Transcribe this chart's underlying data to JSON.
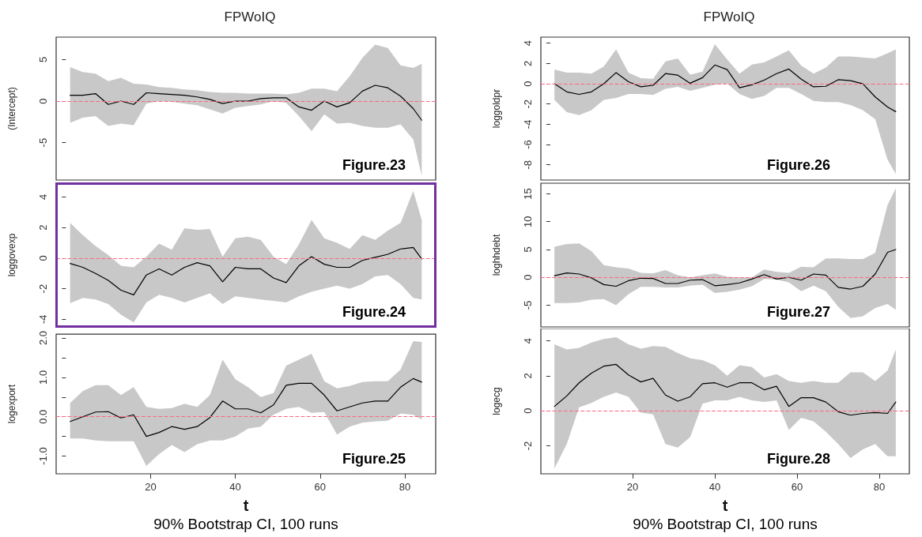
{
  "chart_data": [
    {
      "type": "line",
      "title": "FPWoIQ",
      "ylabel": "(Intercept)",
      "marker": "none",
      "tick_labels": "y",
      "x": [
        1,
        4,
        7,
        10,
        13,
        16,
        19,
        22,
        25,
        28,
        31,
        34,
        37,
        40,
        43,
        46,
        49,
        52,
        55,
        58,
        61,
        64,
        67,
        70,
        73,
        76,
        79,
        82,
        84
      ],
      "xlim": [
        -2.3,
        87.3
      ],
      "xticks": [
        20,
        40,
        60,
        80
      ],
      "ylim": [
        -9.5,
        7.7
      ],
      "yticks": [
        -5,
        0,
        5
      ],
      "ref_lines": [
        {
          "axis": "y",
          "value": 0,
          "color": "#ff6680",
          "line_style": "dashed"
        }
      ],
      "annotations": [
        "Figure.23"
      ],
      "series": [
        {
          "color": "#000000",
          "values": [
            0.7,
            0.7,
            0.9,
            -0.4,
            0,
            -0.4,
            1.0,
            0.9,
            0.8,
            0.7,
            0.5,
            0.2,
            -0.3,
            0,
            0,
            0.3,
            0.4,
            0.4,
            -0.7,
            -1.1,
            0,
            -0.7,
            -0.2,
            1.2,
            1.9,
            1.6,
            0.6,
            -0.9,
            -2.3
          ],
          "upper": [
            4.1,
            3.5,
            3.3,
            2.4,
            2.8,
            2.1,
            2.0,
            1.7,
            1.6,
            1.4,
            1.3,
            1.1,
            1.0,
            1.0,
            0.9,
            0.9,
            0.9,
            0.8,
            1.0,
            1.5,
            1.5,
            1.2,
            3.0,
            5.2,
            6.8,
            6.4,
            4.3,
            4.0,
            4.5
          ],
          "lower": [
            -2.6,
            -2.0,
            -1.8,
            -3.0,
            -2.7,
            -2.9,
            -0.3,
            0.0,
            -0.1,
            -0.3,
            -0.5,
            -1.0,
            -1.5,
            -0.8,
            -0.6,
            -0.4,
            0.0,
            -0.2,
            -1.8,
            -3.6,
            -1.6,
            -2.7,
            -2.6,
            -3.0,
            -3.2,
            -3.2,
            -2.8,
            -4.6,
            -9.0
          ]
        }
      ]
    },
    {
      "type": "line",
      "title": "FPWoIQ",
      "ylabel": "loggoldpr",
      "marker": "none",
      "tick_labels": "y",
      "x": [
        1,
        4,
        7,
        10,
        13,
        16,
        19,
        22,
        25,
        28,
        31,
        34,
        37,
        40,
        43,
        46,
        49,
        52,
        55,
        58,
        61,
        64,
        67,
        70,
        73,
        76,
        79,
        82,
        84
      ],
      "xlim": [
        -2.3,
        87.3
      ],
      "xticks": [
        20,
        40,
        60,
        80
      ],
      "ylim": [
        -9.5,
        4.6
      ],
      "yticks": [
        -8,
        -6,
        -4,
        -2,
        0,
        2,
        4
      ],
      "ref_lines": [
        {
          "axis": "y",
          "value": 0,
          "color": "#ff6680",
          "line_style": "dashed"
        }
      ],
      "annotations": [
        "Figure.26"
      ],
      "series": [
        {
          "color": "#000000",
          "values": [
            0,
            -0.8,
            -1.05,
            -0.8,
            0,
            1.1,
            0.2,
            -0.3,
            -0.15,
            1.0,
            0.85,
            0.05,
            0.6,
            1.85,
            1.4,
            -0.4,
            -0.1,
            0.35,
            1.0,
            1.45,
            0.45,
            -0.3,
            -0.25,
            0.4,
            0.3,
            0,
            -1.3,
            -2.3,
            -2.75
          ],
          "upper": [
            1.4,
            1.1,
            1.1,
            1.0,
            1.7,
            3.4,
            1.1,
            0.55,
            0.5,
            2.2,
            2.5,
            0.9,
            1.2,
            3.9,
            2.4,
            1.0,
            1.9,
            2.1,
            2.7,
            3.3,
            1.8,
            1.0,
            1.6,
            2.7,
            2.7,
            2.6,
            2.5,
            3.0,
            3.4
          ],
          "lower": [
            -1.6,
            -2.8,
            -3.1,
            -2.6,
            -1.6,
            -1.4,
            -1.0,
            -1.0,
            -1.1,
            -0.5,
            -0.3,
            -0.7,
            -0.4,
            -0.1,
            0,
            -1.0,
            -1.5,
            -1.2,
            -0.4,
            -0.4,
            -1.0,
            -1.7,
            -1.8,
            -1.8,
            -2.1,
            -2.6,
            -3.5,
            -7.5,
            -8.9
          ]
        }
      ]
    },
    {
      "type": "line",
      "ylabel": "loggovexp",
      "marker": "none",
      "tick_labels": "y",
      "x": [
        1,
        4,
        7,
        10,
        13,
        16,
        19,
        22,
        25,
        28,
        31,
        34,
        37,
        40,
        43,
        46,
        49,
        52,
        55,
        58,
        61,
        64,
        67,
        70,
        73,
        76,
        79,
        82,
        84
      ],
      "xlim": [
        -2.3,
        87.3
      ],
      "xticks": [
        20,
        40,
        60,
        80
      ],
      "ylim": [
        -4.5,
        4.9
      ],
      "yticks": [
        -4,
        -2,
        0,
        2,
        4
      ],
      "ref_lines": [
        {
          "axis": "y",
          "value": 0,
          "color": "#ff6680",
          "line_style": "dashed"
        }
      ],
      "annotations": [
        "Figure.24"
      ],
      "series": [
        {
          "color": "#000000",
          "values": [
            -0.35,
            -0.6,
            -1.0,
            -1.45,
            -2.1,
            -2.4,
            -1.1,
            -0.7,
            -1.1,
            -0.6,
            -0.3,
            -0.5,
            -1.55,
            -0.6,
            -0.7,
            -0.7,
            -1.3,
            -1.6,
            -0.5,
            0.1,
            -0.4,
            -0.6,
            -0.6,
            -0.15,
            0.05,
            0.25,
            0.6,
            0.7,
            -0.05
          ],
          "upper": [
            2.3,
            1.5,
            0.8,
            0.2,
            -0.5,
            -0.6,
            0.1,
            0.95,
            0.55,
            1.95,
            1.85,
            1.9,
            0.1,
            1.3,
            1.4,
            1.2,
            0.1,
            -0.4,
            0.9,
            2.5,
            1.3,
            1.0,
            0.6,
            1.5,
            1.2,
            1.8,
            2.3,
            4.4,
            2.5
          ],
          "lower": [
            -2.95,
            -2.6,
            -2.7,
            -3.0,
            -3.7,
            -4.2,
            -2.9,
            -2.4,
            -2.6,
            -2.9,
            -2.6,
            -2.3,
            -3.0,
            -2.5,
            -2.6,
            -2.7,
            -2.8,
            -2.9,
            -2.5,
            -2.2,
            -2.0,
            -1.8,
            -2.0,
            -1.7,
            -1.2,
            -1.1,
            -1.7,
            -2.6,
            -2.7
          ]
        }
      ]
    },
    {
      "type": "line",
      "ylabel": "loghhdebt",
      "marker": "none",
      "tick_labels": "y",
      "x": [
        1,
        4,
        7,
        10,
        13,
        16,
        19,
        22,
        25,
        28,
        31,
        34,
        37,
        40,
        43,
        46,
        49,
        52,
        55,
        58,
        61,
        64,
        67,
        70,
        73,
        76,
        79,
        82,
        84
      ],
      "xlim": [
        -2.3,
        87.3
      ],
      "xticks": [
        20,
        40,
        60,
        80
      ],
      "ylim": [
        -8.9,
        16.9
      ],
      "yticks": [
        -5,
        0,
        5,
        10,
        15
      ],
      "ref_lines": [
        {
          "axis": "y",
          "value": 0,
          "color": "#ff6680",
          "line_style": "dashed"
        }
      ],
      "annotations": [
        "Figure.27"
      ],
      "series": [
        {
          "color": "#000000",
          "values": [
            0.3,
            0.8,
            0.6,
            -0.1,
            -1.3,
            -1.6,
            -0.6,
            -0.15,
            -0.2,
            -1.1,
            -1.1,
            -0.5,
            -0.4,
            -1.5,
            -1.3,
            -1.0,
            -0.3,
            0.5,
            -0.3,
            0.0,
            -0.5,
            0.6,
            0.4,
            -1.8,
            -2.1,
            -1.6,
            0.6,
            4.5,
            5.0
          ],
          "upper": [
            5.5,
            6.0,
            6.1,
            4.7,
            2.2,
            1.8,
            1.6,
            0.8,
            0.7,
            1.3,
            0.4,
            0.0,
            0.4,
            0.7,
            0.1,
            0.0,
            0.0,
            1.4,
            1.0,
            0.8,
            1.9,
            1.8,
            3.4,
            3.4,
            3.3,
            3.3,
            4.4,
            13,
            16
          ],
          "lower": [
            -4.6,
            -4.6,
            -4.5,
            -4.0,
            -3.9,
            -5.0,
            -3.0,
            -1.7,
            -1.7,
            -1.8,
            -1.8,
            -1.5,
            -1.3,
            -2.8,
            -2.6,
            -2.2,
            -1.6,
            -0.3,
            -0.4,
            -0.9,
            -2.5,
            -1.5,
            -2.5,
            -5.3,
            -7.3,
            -7.0,
            -5.5,
            -4.8,
            -5.8
          ]
        }
      ]
    },
    {
      "type": "line",
      "ylabel": "logexport",
      "xlabel": "t",
      "marker": "none",
      "x": [
        1,
        4,
        7,
        10,
        13,
        16,
        19,
        22,
        25,
        28,
        31,
        34,
        37,
        40,
        43,
        46,
        49,
        52,
        55,
        58,
        61,
        64,
        67,
        70,
        73,
        76,
        79,
        82,
        84
      ],
      "xlim": [
        -2.3,
        87.3
      ],
      "xticks": [
        20,
        40,
        60,
        80
      ],
      "ylim": [
        -1.45,
        2.1
      ],
      "yticks": [
        {
          "value": -1,
          "label": "-1.0"
        },
        {
          "value": -0.5,
          "label": null
        },
        {
          "value": 0,
          "label": "0.0"
        },
        {
          "value": 0.5,
          "label": null
        },
        {
          "value": 1,
          "label": "1.0"
        },
        {
          "value": 1.5,
          "label": null
        },
        {
          "value": 2,
          "label": "2.0"
        }
      ],
      "ref_lines": [
        {
          "axis": "y",
          "value": 0,
          "color": "#ff6680",
          "line_style": "dashed"
        }
      ],
      "annotations": [
        "Figure.25",
        "90% Bootstrap CI, 100 runs"
      ],
      "series": [
        {
          "color": "#000000",
          "values": [
            -0.12,
            0.0,
            0.12,
            0.13,
            -0.03,
            0.05,
            -0.5,
            -0.4,
            -0.25,
            -0.32,
            -0.25,
            -0.02,
            0.4,
            0.2,
            0.2,
            0.1,
            0.3,
            0.8,
            0.85,
            0.85,
            0.55,
            0.15,
            0.25,
            0.35,
            0.4,
            0.4,
            0.75,
            0.97,
            0.88
          ],
          "upper": [
            0.35,
            0.65,
            0.8,
            0.8,
            0.55,
            0.75,
            0.25,
            0.2,
            0.22,
            0.33,
            0.25,
            0.55,
            1.45,
            0.95,
            0.75,
            0.5,
            0.6,
            1.3,
            1.45,
            1.6,
            0.9,
            0.72,
            0.78,
            0.88,
            0.9,
            0.9,
            1.2,
            1.92,
            1.9
          ],
          "lower": [
            -0.55,
            -0.55,
            -0.6,
            -0.62,
            -0.62,
            -0.62,
            -1.25,
            -0.95,
            -0.72,
            -0.9,
            -0.7,
            -0.6,
            -0.6,
            -0.5,
            -0.3,
            -0.25,
            0.05,
            0.2,
            0.25,
            0.1,
            0.12,
            -0.45,
            -0.25,
            -0.15,
            -0.12,
            -0.1,
            0.08,
            0.05,
            -0.07
          ]
        }
      ]
    },
    {
      "type": "line",
      "ylabel": "logecg",
      "xlabel": "t",
      "marker": "none",
      "x": [
        1,
        4,
        7,
        10,
        13,
        16,
        19,
        22,
        25,
        28,
        31,
        34,
        37,
        40,
        43,
        46,
        49,
        52,
        55,
        58,
        61,
        64,
        67,
        70,
        73,
        76,
        79,
        82,
        84
      ],
      "xlim": [
        -2.3,
        87.3
      ],
      "xticks": [
        20,
        40,
        60,
        80
      ],
      "ylim": [
        -3.6,
        4.7
      ],
      "yticks": [
        -2,
        0,
        2,
        4
      ],
      "ref_lines": [
        {
          "axis": "y",
          "value": 0,
          "color": "#ff6680",
          "line_style": "dashed"
        }
      ],
      "annotations": [
        "Figure.28",
        "90% Bootstrap CI, 100 runs"
      ],
      "series": [
        {
          "color": "#000000",
          "values": [
            0.25,
            0.85,
            1.6,
            2.15,
            2.55,
            2.65,
            2.05,
            1.65,
            1.85,
            0.9,
            0.55,
            0.8,
            1.55,
            1.6,
            1.35,
            1.6,
            1.6,
            1.2,
            1.4,
            0.25,
            0.75,
            0.75,
            0.5,
            -0.05,
            -0.25,
            -0.15,
            -0.1,
            -0.15,
            0.5
          ],
          "upper": [
            3.8,
            3.5,
            3.6,
            3.9,
            4.1,
            4.2,
            3.8,
            3.55,
            3.7,
            3.65,
            3.3,
            3.0,
            2.9,
            2.6,
            2.0,
            2.6,
            2.5,
            1.9,
            2.1,
            1.7,
            1.6,
            1.7,
            1.6,
            1.6,
            2.2,
            2.2,
            1.7,
            2.3,
            3.5
          ],
          "lower": [
            -3.3,
            -1.9,
            0.2,
            0.45,
            0.8,
            1.05,
            0.8,
            -0.1,
            -0.2,
            -1.9,
            -2.1,
            -1.5,
            0.4,
            0.6,
            0.6,
            0.8,
            0.6,
            0.5,
            0.6,
            -1.1,
            -0.4,
            -0.6,
            -1.2,
            -1.9,
            -2.7,
            -2.2,
            -1.9,
            -2.6,
            -2.6
          ]
        }
      ]
    }
  ]
}
